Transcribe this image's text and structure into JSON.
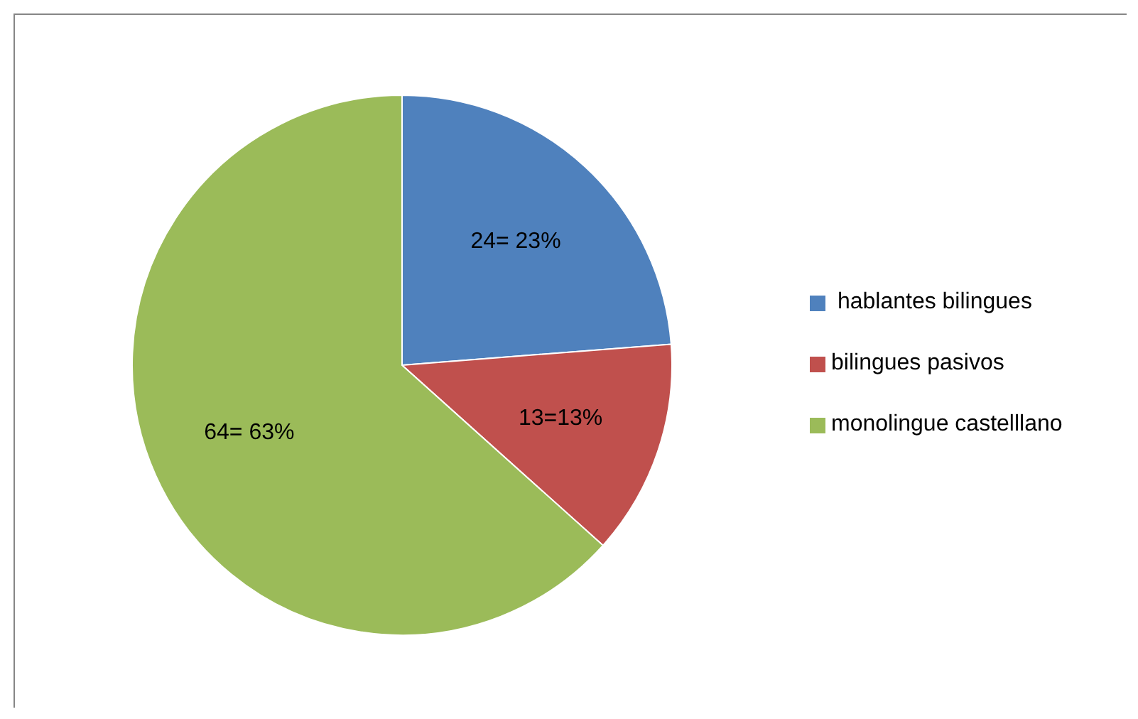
{
  "chart_data": {
    "type": "pie",
    "categories": [
      " hablantes bilingues",
      "bilingues pasivos",
      "monolingue castelllano"
    ],
    "values": [
      24,
      13,
      64
    ],
    "colors": [
      "#4f81bd",
      "#c0504d",
      "#9bbb59"
    ],
    "value_labels": [
      "24= 23%",
      "13=13%",
      "64= 63%"
    ],
    "legend": "right"
  }
}
